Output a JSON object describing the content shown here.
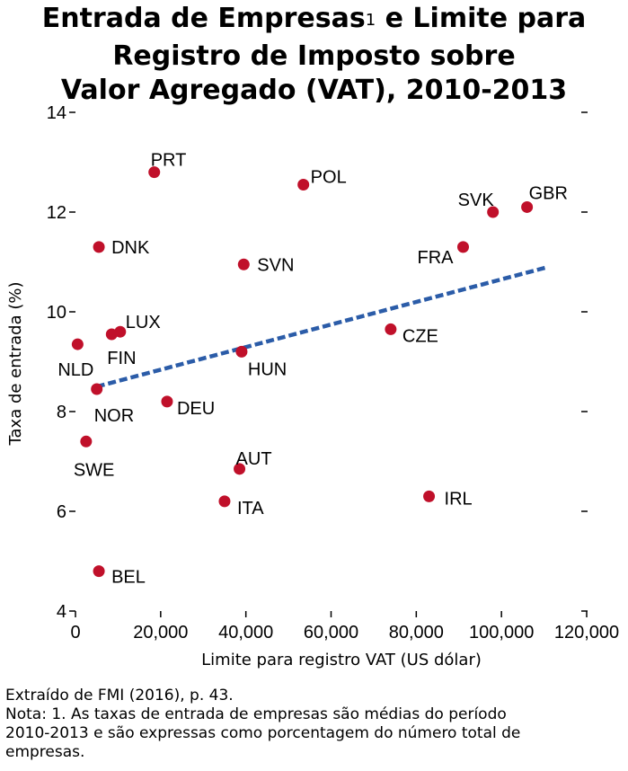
{
  "title": {
    "line1_pre": "Entrada de Empresas",
    "line1_sup": "1",
    "line1_post": " e Limite para",
    "line2": "Registro de Imposto sobre",
    "line3": "Valor Agregado (VAT), 2010-2013"
  },
  "chart_data": {
    "type": "scatter",
    "xlabel": "Limite para registro VAT (US dólar)",
    "ylabel": "Taxa de entrada (%)",
    "xlim": [
      0,
      120000
    ],
    "ylim": [
      4,
      14
    ],
    "x_ticks": [
      0,
      20000,
      40000,
      60000,
      80000,
      100000,
      120000
    ],
    "x_tick_labels": [
      "0",
      "20,000",
      "40,000",
      "60,000",
      "80,000",
      "100,000",
      "120,000"
    ],
    "y_ticks": [
      4,
      6,
      8,
      10,
      12,
      14
    ],
    "y_tick_labels": [
      "4",
      "6",
      "8",
      "10",
      "12",
      "14"
    ],
    "grid": false,
    "point_color": "#c0102a",
    "trend_color": "#2b5ca8",
    "points": [
      {
        "label": "PRT",
        "x": 18500,
        "y": 12.8
      },
      {
        "label": "POL",
        "x": 53500,
        "y": 12.55
      },
      {
        "label": "SVK",
        "x": 98000,
        "y": 12.0
      },
      {
        "label": "GBR",
        "x": 106000,
        "y": 12.1
      },
      {
        "label": "DNK",
        "x": 5500,
        "y": 11.3
      },
      {
        "label": "SVN",
        "x": 39500,
        "y": 10.95
      },
      {
        "label": "FRA",
        "x": 91000,
        "y": 11.3
      },
      {
        "label": "LUX",
        "x": 10500,
        "y": 9.6
      },
      {
        "label": "FIN",
        "x": 8500,
        "y": 9.55
      },
      {
        "label": "NLD",
        "x": 500,
        "y": 9.35
      },
      {
        "label": "CZE",
        "x": 74000,
        "y": 9.65
      },
      {
        "label": "HUN",
        "x": 39000,
        "y": 9.2
      },
      {
        "label": "NOR",
        "x": 5000,
        "y": 8.45
      },
      {
        "label": "DEU",
        "x": 21500,
        "y": 8.2
      },
      {
        "label": "SWE",
        "x": 2500,
        "y": 7.4
      },
      {
        "label": "AUT",
        "x": 38500,
        "y": 6.85
      },
      {
        "label": "ITA",
        "x": 35000,
        "y": 6.2
      },
      {
        "label": "IRL",
        "x": 83000,
        "y": 6.3
      },
      {
        "label": "BEL",
        "x": 5500,
        "y": 4.8
      }
    ],
    "trendline": {
      "x": [
        5000,
        111000
      ],
      "y": [
        8.5,
        10.9
      ],
      "style": "dashed"
    }
  },
  "note": {
    "source": "Extraído de FMI (2016), p. 43.",
    "line1": "Nota: 1. As taxas de entrada de empresas são médias do período",
    "line2": "2010-2013 e são expressas como porcentagem do número total de",
    "line3": "empresas."
  }
}
